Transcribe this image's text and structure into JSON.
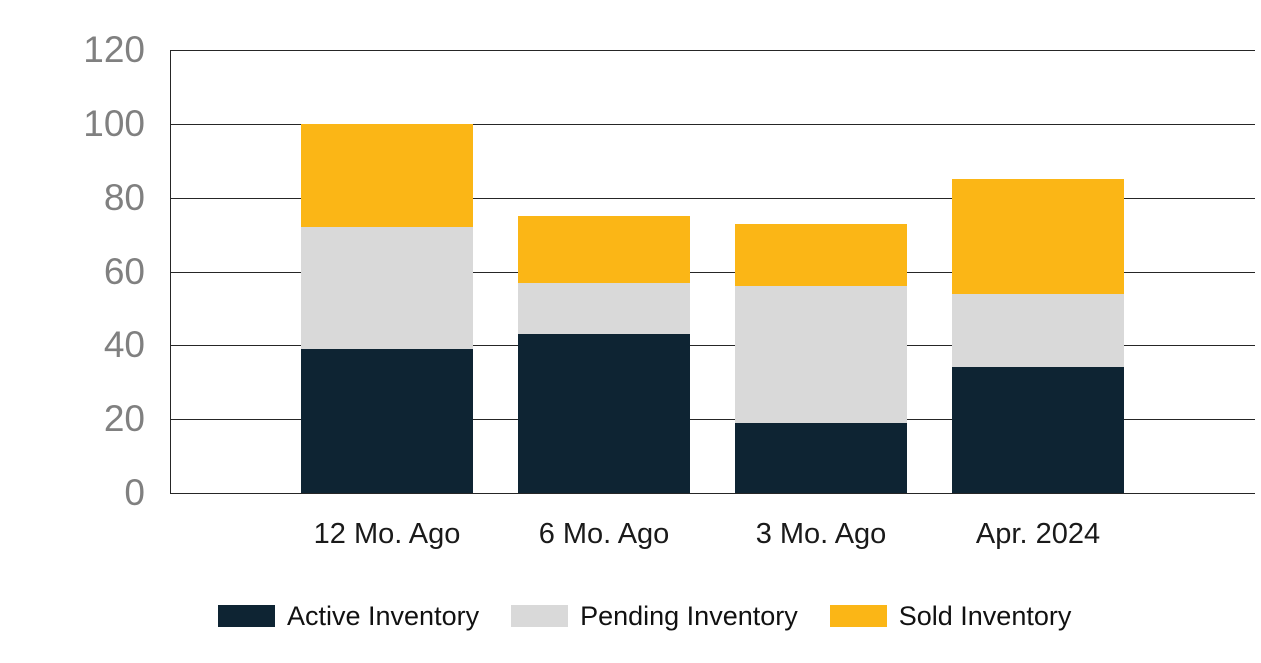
{
  "colors": {
    "active": "#0e2433",
    "pending": "#d9d9d9",
    "sold": "#fbb616",
    "grid": "#262626",
    "y_label": "#808080",
    "x_label": "#1a1a1a",
    "background": "#ffffff"
  },
  "chart_data": {
    "type": "bar",
    "stacked": true,
    "title": "",
    "xlabel": "",
    "ylabel": "",
    "categories": [
      "12 Mo. Ago",
      "6 Mo. Ago",
      "3 Mo. Ago",
      "Apr. 2024"
    ],
    "series": [
      {
        "name": "Active Inventory",
        "color_key": "active",
        "values": [
          39,
          43,
          19,
          34
        ]
      },
      {
        "name": "Pending Inventory",
        "color_key": "pending",
        "values": [
          33,
          14,
          37,
          20
        ]
      },
      {
        "name": "Sold Inventory",
        "color_key": "sold",
        "values": [
          28,
          18,
          17,
          31
        ]
      }
    ],
    "stack_totals": [
      100,
      75,
      73,
      85
    ],
    "ylim": [
      0,
      120
    ],
    "yticks": [
      0,
      20,
      40,
      60,
      80,
      100,
      120
    ],
    "grid": true,
    "legend_position": "bottom"
  }
}
